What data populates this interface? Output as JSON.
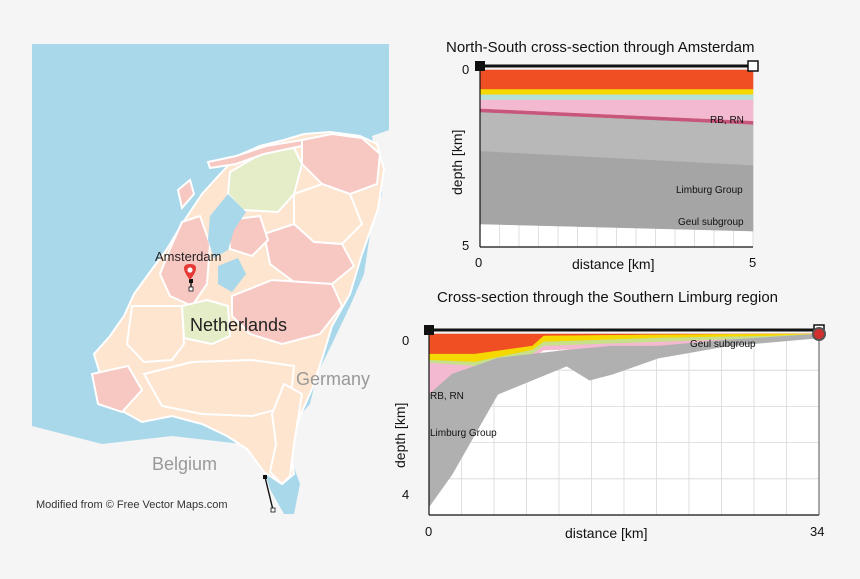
{
  "map": {
    "city_label": "Amsterdam",
    "country_label": "Netherlands",
    "neighbor_labels": [
      "Germany",
      "Belgium"
    ],
    "credit": "Modified from © Free Vector Maps.com",
    "marker_icon": "map-pin-icon",
    "colors": {
      "sea": "#a8d8ea",
      "land_pink": "#f7c7c2",
      "land_peach": "#fde5d0",
      "land_green": "#e4ecc8",
      "neighbor": "#f5f5f5",
      "pin": "#e53935"
    }
  },
  "chart_data": [
    {
      "type": "area",
      "title": "North-South cross-section through Amsterdam",
      "xlabel": "distance [km]",
      "ylabel": "depth [km]",
      "xlim": [
        0,
        5
      ],
      "ylim": [
        5,
        0
      ],
      "x_ticks": [
        "0",
        "5"
      ],
      "y_ticks": [
        "0",
        "5"
      ],
      "grid": true,
      "annotations": [
        "RB, RN",
        "Limburg Group",
        "Geul subgroup"
      ],
      "layers": [
        {
          "name": "",
          "color": "#f04e23",
          "top": [
            0.0,
            0.0
          ],
          "bottom": [
            0.55,
            0.55
          ]
        },
        {
          "name": "",
          "color": "#f5d800",
          "top": [
            0.55,
            0.55
          ],
          "bottom": [
            0.7,
            0.7
          ]
        },
        {
          "name": "",
          "color": "#b7e0d8",
          "top": [
            0.7,
            0.7
          ],
          "bottom": [
            0.85,
            0.85
          ]
        },
        {
          "name": "RB, RN",
          "color": "#f3b9d0",
          "top": [
            0.85,
            0.85
          ],
          "bottom": [
            1.1,
            1.45
          ]
        },
        {
          "name": "",
          "color": "#c7567a",
          "top": [
            1.1,
            1.45
          ],
          "bottom": [
            1.2,
            1.55
          ]
        },
        {
          "name": "Limburg Group",
          "color": "#b8b8b8",
          "top": [
            1.2,
            1.55
          ],
          "bottom": [
            2.3,
            2.7
          ]
        },
        {
          "name": "Geul subgroup",
          "color": "#a5a5a5",
          "top": [
            2.3,
            2.7
          ],
          "bottom": [
            4.35,
            4.55
          ]
        }
      ],
      "markers": {
        "start": "filled-square",
        "end": "open-square"
      }
    },
    {
      "type": "area",
      "title": "Cross-section through the Southern Limburg region",
      "xlabel": "distance [km]",
      "ylabel": "depth [km]",
      "xlim": [
        0,
        34
      ],
      "ylim": [
        4.5,
        0
      ],
      "x_ticks": [
        "0",
        "34"
      ],
      "y_ticks": [
        "0",
        "4"
      ],
      "grid": true,
      "annotations": [
        "Geul subgroup",
        "RB, RN",
        "Limburg Group"
      ],
      "layers": [
        {
          "name": "",
          "color": "#f04e23",
          "x": [
            0,
            4,
            9,
            10,
            20,
            30,
            34
          ],
          "top": [
            0.0,
            0.0,
            0.0,
            0.0,
            0.0,
            0.0,
            0.0
          ],
          "bottom": [
            0.5,
            0.5,
            0.3,
            0.05,
            0.02,
            0.0,
            0.0
          ]
        },
        {
          "name": "",
          "color": "#f5d800",
          "x": [
            0,
            4,
            9,
            10,
            20,
            30,
            34
          ],
          "top": [
            0.5,
            0.5,
            0.3,
            0.05,
            0.02,
            0.0,
            0.0
          ],
          "bottom": [
            0.65,
            0.7,
            0.4,
            0.2,
            0.1,
            0.05,
            0.0
          ]
        },
        {
          "name": "",
          "color": "#c8e08a",
          "x": [
            0,
            4,
            9,
            10,
            20,
            30,
            34
          ],
          "top": [
            0.65,
            0.7,
            0.4,
            0.2,
            0.1,
            0.05,
            0.0
          ],
          "bottom": [
            0.72,
            0.8,
            0.5,
            0.3,
            0.2,
            0.1,
            0.0
          ]
        },
        {
          "name": "RB, RN",
          "color": "#f3b9d0",
          "x": [
            0,
            4,
            9,
            10,
            20,
            30,
            34
          ],
          "top": [
            0.72,
            0.8,
            0.5,
            0.3,
            0.2,
            0.1,
            0.0
          ],
          "bottom": [
            1.5,
            1.0,
            0.6,
            0.4,
            0.3,
            0.15,
            0.0
          ]
        },
        {
          "name": "Limburg Group",
          "color": "#b0b0b0",
          "x": [
            0,
            2,
            6,
            12,
            14,
            16,
            20,
            26,
            34
          ],
          "top": [
            1.5,
            1.0,
            0.6,
            0.4,
            0.35,
            0.3,
            0.3,
            0.15,
            0.0
          ],
          "bottom": [
            4.3,
            3.5,
            1.5,
            0.8,
            1.15,
            1.0,
            0.6,
            0.3,
            0.1
          ]
        }
      ],
      "markers": {
        "start": "filled-square",
        "end": "open-square",
        "point": "red-dot"
      }
    }
  ]
}
